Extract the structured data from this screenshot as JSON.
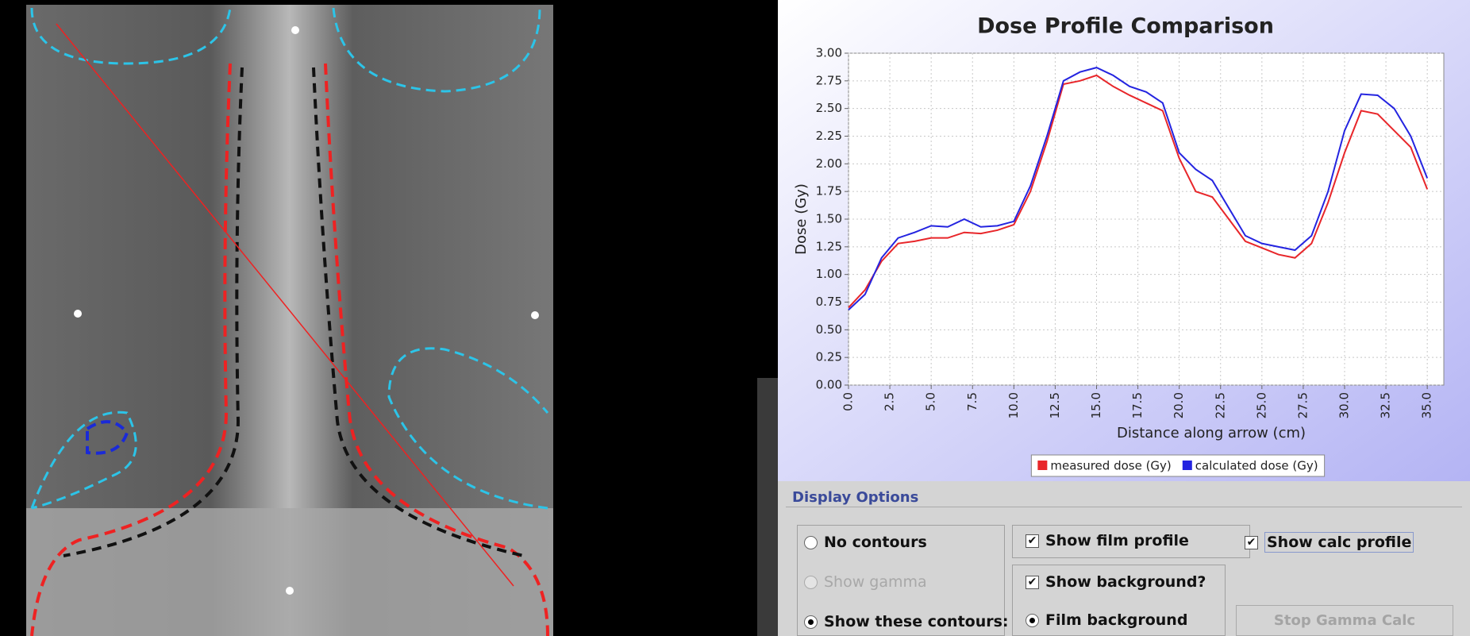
{
  "chart_data": {
    "type": "line",
    "title": "Dose Profile Comparison",
    "x_label": "Distance along arrow (cm)",
    "y_label": "Dose (Gy)",
    "x": [
      0,
      1,
      2,
      3,
      4,
      5,
      6,
      7,
      8,
      9,
      10,
      11,
      12,
      13,
      14,
      15,
      16,
      17,
      18,
      19,
      20,
      21,
      22,
      23,
      24,
      25,
      26,
      27,
      28,
      29,
      30,
      31,
      32,
      33,
      34,
      35
    ],
    "series": [
      {
        "name": "measured dose (Gy)",
        "color": "#e8262a",
        "values": [
          0.7,
          0.86,
          1.12,
          1.28,
          1.3,
          1.33,
          1.33,
          1.38,
          1.37,
          1.4,
          1.45,
          1.75,
          2.2,
          2.72,
          2.75,
          2.8,
          2.7,
          2.62,
          2.55,
          2.48,
          2.05,
          1.75,
          1.7,
          1.5,
          1.3,
          1.24,
          1.18,
          1.15,
          1.28,
          1.65,
          2.1,
          2.48,
          2.45,
          2.3,
          2.15,
          1.77
        ]
      },
      {
        "name": "calculated dose (Gy)",
        "color": "#2424e0",
        "values": [
          0.68,
          0.82,
          1.15,
          1.33,
          1.38,
          1.44,
          1.43,
          1.5,
          1.43,
          1.44,
          1.48,
          1.8,
          2.25,
          2.75,
          2.83,
          2.87,
          2.8,
          2.7,
          2.65,
          2.55,
          2.1,
          1.95,
          1.85,
          1.6,
          1.35,
          1.28,
          1.25,
          1.22,
          1.35,
          1.75,
          2.3,
          2.63,
          2.62,
          2.5,
          2.25,
          1.87
        ]
      }
    ],
    "xlim": [
      0,
      36
    ],
    "ylim": [
      0,
      3
    ],
    "xticks": [
      {
        "value": 0,
        "label": "0.0"
      },
      2.5,
      {
        "value": 5,
        "label": "5.0"
      },
      7.5,
      {
        "value": 10,
        "label": "10.0"
      },
      12.5,
      {
        "value": 15,
        "label": "15.0"
      },
      17.5,
      {
        "value": 20,
        "label": "20.0"
      },
      22.5,
      {
        "value": 25,
        "label": "25.0"
      },
      27.5,
      {
        "value": 30,
        "label": "30.0"
      },
      32.5,
      {
        "value": 35,
        "label": "35.0"
      }
    ],
    "yticks": [
      {
        "value": 0,
        "label": "0.00"
      },
      0.25,
      {
        "value": 0.5,
        "label": "0.50"
      },
      0.75,
      {
        "value": 1,
        "label": "1.00"
      },
      1.25,
      {
        "value": 1.5,
        "label": "1.50"
      },
      1.75,
      {
        "value": 2,
        "label": "2.00"
      },
      2.25,
      {
        "value": 2.5,
        "label": "2.50"
      },
      2.75,
      {
        "value": 3,
        "label": "3.00"
      }
    ],
    "grid": true,
    "legend": "bottom"
  },
  "ui": {
    "section_title": "Display Options",
    "contours": {
      "no_contours": "No contours",
      "show_gamma": "Show gamma",
      "show_these": "Show these contours:"
    },
    "profile": {
      "film": "Show film profile",
      "calc": "Show calc profile"
    },
    "background": {
      "show": "Show background?",
      "film": "Film background"
    },
    "button": "Stop Gamma Calc"
  }
}
